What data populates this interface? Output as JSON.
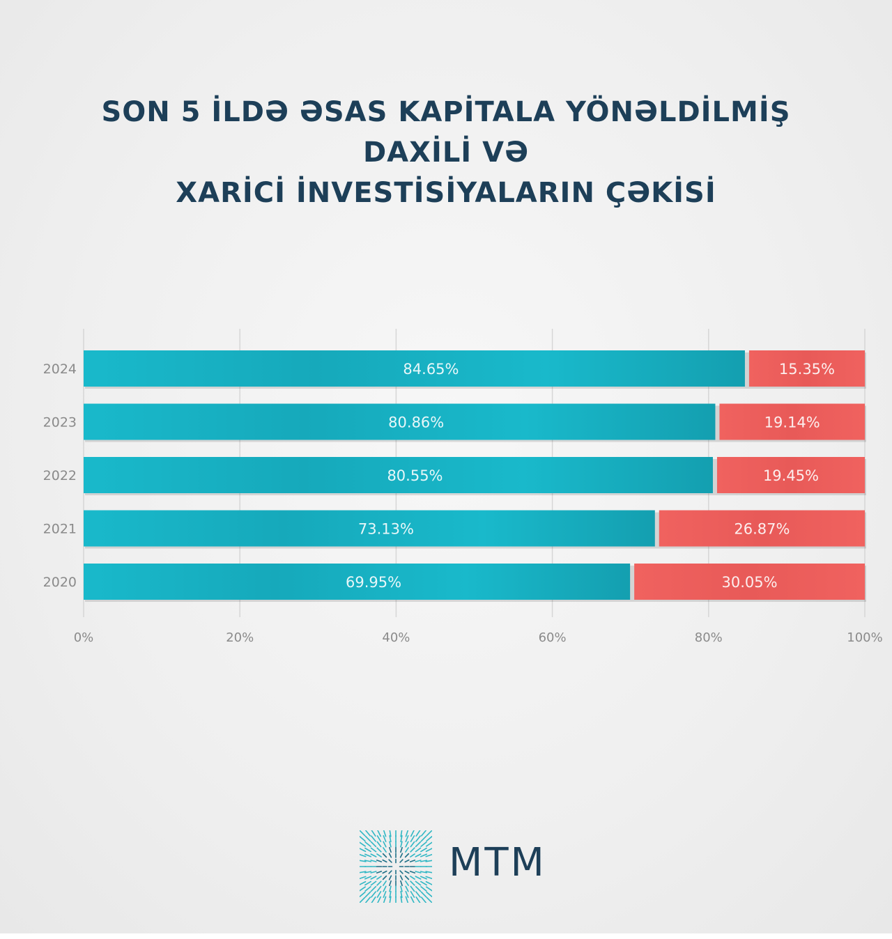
{
  "title_lines": [
    "SON 5 İLDƏ ƏSAS KAPİTALA YÖNƏLDİLMİŞ DAXİLİ VƏ",
    "XARİCİ İNVESTİSİYALARIN ÇƏKİSİ"
  ],
  "colors": {
    "domestic": "#19b9cb",
    "foreign": "#f0625f",
    "title": "#1d3f58",
    "axis_text": "#8a8a8a"
  },
  "logo": {
    "text": "MTM",
    "icon": "mtm-starburst-logo-icon"
  },
  "chart_data": {
    "type": "bar",
    "orientation": "horizontal",
    "stacked": true,
    "categories": [
      "2024",
      "2023",
      "2022",
      "2021",
      "2020"
    ],
    "series": [
      {
        "values": [
          84.65,
          80.86,
          80.55,
          73.13,
          69.95
        ],
        "labels": [
          "84.65%",
          "80.86%",
          "80.55%",
          "73.13%",
          "69.95%"
        ]
      },
      {
        "values": [
          15.35,
          19.14,
          19.45,
          26.87,
          30.05
        ],
        "labels": [
          "15.35%",
          "19.14%",
          "19.45%",
          "26.87%",
          "30.05%"
        ]
      }
    ],
    "x_ticks": [
      0,
      20,
      40,
      60,
      80,
      100
    ],
    "x_tick_labels": [
      "0%",
      "20%",
      "40%",
      "60%",
      "80%",
      "100%"
    ],
    "xlim": [
      0,
      100
    ],
    "xlabel": "",
    "ylabel": "",
    "grid": true,
    "legend": "none"
  }
}
